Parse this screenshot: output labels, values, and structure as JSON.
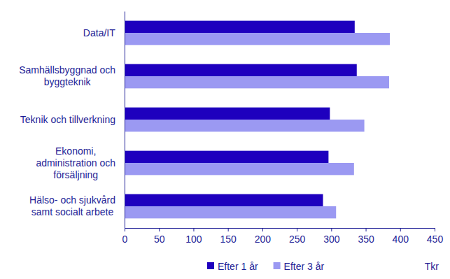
{
  "chart_data": {
    "type": "bar",
    "orientation": "horizontal",
    "categories": [
      "Data/IT",
      "Samhällsbyggnad och\nbyggteknik",
      "Teknik och tillverkning",
      "Ekonomi,\nadministration och\nförsäljning",
      "Hälso- och sjukvård\nsamt socialt arbete"
    ],
    "series": [
      {
        "name": "Efter 1 år",
        "color": "#1e00be",
        "values": [
          334,
          337,
          298,
          296,
          288
        ]
      },
      {
        "name": "Efter 3 år",
        "color": "#9b99f2",
        "values": [
          385,
          384,
          348,
          333,
          307
        ]
      }
    ],
    "xlim": [
      0,
      450
    ],
    "xticks": [
      0,
      50,
      100,
      150,
      200,
      250,
      300,
      350,
      400,
      450
    ],
    "x_label": "Tkr",
    "grid": false,
    "legend": "bottom"
  }
}
